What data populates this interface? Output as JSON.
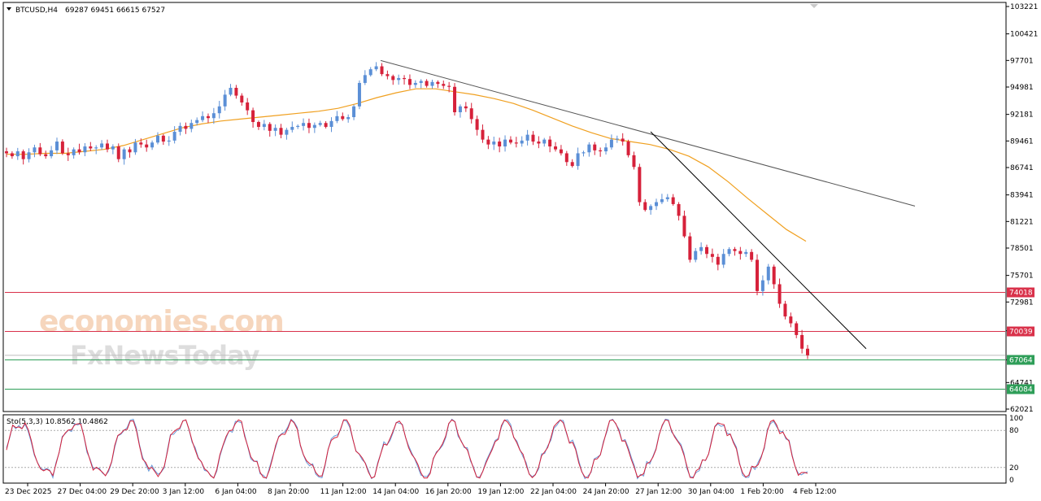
{
  "header": {
    "symbol": "BTCUSD,H4",
    "ohlc": "69287 69451 66615 67527"
  },
  "watermark": {
    "brand_top": "economies.com",
    "brand_bottom": "FxNewsToday"
  },
  "price_axis_labels": [
    "103221",
    "100421",
    "97701",
    "94981",
    "92181",
    "89461",
    "86741",
    "83941",
    "81221",
    "78501",
    "75701",
    "72981",
    "70039",
    "67064",
    "64741",
    "62021"
  ],
  "price_tags": [
    {
      "label": "74018",
      "value": 74018,
      "color": "#d9314a"
    },
    {
      "label": "70039",
      "value": 70039,
      "color": "#d9314a"
    },
    {
      "label": "67064",
      "value": 67064,
      "color": "#2e9e58"
    },
    {
      "label": "64084",
      "value": 64084,
      "color": "#2e9e58"
    }
  ],
  "time_axis_labels": [
    "23 Dec 2025",
    "27 Dec 04:00",
    "29 Dec 20:00",
    "3 Jan 12:00",
    "6 Jan 04:00",
    "8 Jan 20:00",
    "11 Jan 12:00",
    "14 Jan 04:00",
    "16 Jan 20:00",
    "19 Jan 12:00",
    "22 Jan 04:00",
    "24 Jan 20:00",
    "27 Jan 12:00",
    "30 Jan 04:00",
    "1 Feb 20:00",
    "4 Feb 12:00"
  ],
  "oscillator": {
    "label": "Sto(5,3,3) 10.8562 10.4862",
    "axis_labels": [
      "100",
      "80",
      "20",
      "0"
    ]
  },
  "chart_data": {
    "type": "candlestick",
    "symbol": "BTCUSD",
    "timeframe": "H4",
    "ylim": [
      62021,
      103221
    ],
    "horizontal_levels": [
      74018,
      70039,
      67064,
      64084
    ],
    "candles_close_approx": [
      88200,
      87900,
      88400,
      87600,
      88300,
      88800,
      88100,
      87900,
      88500,
      89400,
      88200,
      88000,
      88600,
      88300,
      88900,
      88700,
      88800,
      89200,
      88600,
      88900,
      87600,
      88600,
      88300,
      89300,
      89100,
      88800,
      89300,
      90000,
      89400,
      89500,
      90400,
      91000,
      90700,
      91300,
      91600,
      92000,
      91800,
      92300,
      93000,
      94200,
      94900,
      94100,
      93400,
      92600,
      91400,
      90900,
      91200,
      90500,
      90800,
      90100,
      90600,
      90900,
      91000,
      91300,
      90800,
      91100,
      91300,
      90900,
      91500,
      92000,
      91700,
      91900,
      93000,
      95400,
      96200,
      96800,
      97100,
      96300,
      96100,
      95700,
      95900,
      95800,
      95200,
      95400,
      95600,
      95100,
      95500,
      95300,
      95100,
      95000,
      92400,
      93000,
      92800,
      91700,
      90600,
      89600,
      89100,
      89400,
      88900,
      89600,
      89300,
      89200,
      89500,
      90100,
      89400,
      89200,
      89600,
      88900,
      88600,
      88200,
      87300,
      86900,
      88200,
      88300,
      89100,
      88500,
      88400,
      88800,
      89600,
      89700,
      89400,
      88000,
      86800,
      83200,
      82400,
      82800,
      83200,
      83500,
      83700,
      83000,
      81800,
      79700,
      77300,
      78200,
      78600,
      77900,
      77600,
      76800,
      77900,
      78400,
      78200,
      77900,
      78100,
      77300,
      74100,
      75200,
      76600,
      74800,
      72800,
      71500,
      70800,
      69600,
      68200,
      67527
    ],
    "moving_average_approx": [
      88100,
      88100,
      88200,
      88200,
      88400,
      88600,
      89000,
      89600,
      90200,
      90800,
      91200,
      91500,
      91700,
      91900,
      92100,
      92300,
      92500,
      92800,
      93300,
      93900,
      94400,
      94800,
      94800,
      94500,
      94200,
      93800,
      93300,
      92600,
      91800,
      91000,
      90300,
      89700,
      89400,
      89100,
      88600,
      87900,
      86800,
      85300,
      83600,
      82000,
      80400,
      79200
    ],
    "trendlines": [
      {
        "from": [
          "14 Jan 04:00",
          97700
        ],
        "to": [
          "10 Feb",
          82800
        ]
      },
      {
        "from": [
          "28 Jan",
          90400
        ],
        "to": [
          "7 Feb",
          68200
        ]
      }
    ],
    "stochastic": {
      "k": 10.8562,
      "d": 10.4862,
      "levels": [
        80,
        20
      ]
    }
  }
}
